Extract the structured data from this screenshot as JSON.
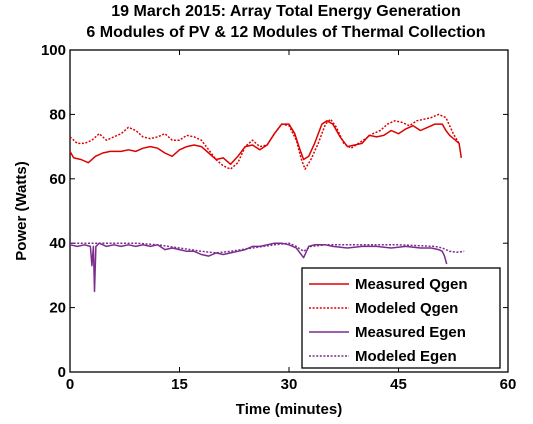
{
  "chart_data": {
    "type": "line",
    "title": [
      "19 March 2015: Array Total Energy Generation",
      "6 Modules of PV & 12 Modules of Thermal Collection"
    ],
    "xlabel": "Time (minutes)",
    "ylabel": "Power (Watts)",
    "xlim": [
      0,
      60
    ],
    "ylim": [
      0,
      100
    ],
    "xticks": [
      0,
      15,
      30,
      45,
      60
    ],
    "yticks": [
      0,
      20,
      40,
      60,
      80,
      100
    ],
    "grid": false,
    "legend_position": "bottom-right",
    "series": [
      {
        "name": "Measured Qgen",
        "color": "#dd0000",
        "style": "solid",
        "points": [
          [
            0,
            68.5
          ],
          [
            0.5,
            66.5
          ],
          [
            1.5,
            66
          ],
          [
            2.5,
            65
          ],
          [
            3.5,
            67
          ],
          [
            4.5,
            68
          ],
          [
            5.5,
            68.5
          ],
          [
            7,
            68.5
          ],
          [
            8,
            69
          ],
          [
            9,
            68.5
          ],
          [
            10,
            69.5
          ],
          [
            11,
            70
          ],
          [
            12,
            69.5
          ],
          [
            13,
            68
          ],
          [
            14,
            67
          ],
          [
            15,
            69
          ],
          [
            16,
            70
          ],
          [
            17,
            70.5
          ],
          [
            18,
            70
          ],
          [
            19,
            68
          ],
          [
            20,
            66
          ],
          [
            21,
            66.5
          ],
          [
            22,
            64.5
          ],
          [
            23,
            67
          ],
          [
            24,
            70
          ],
          [
            25,
            70.5
          ],
          [
            26,
            69
          ],
          [
            27,
            70.5
          ],
          [
            28,
            74
          ],
          [
            29,
            77
          ],
          [
            30,
            77
          ],
          [
            30.8,
            74
          ],
          [
            31.5,
            69
          ],
          [
            32,
            66
          ],
          [
            32.7,
            67
          ],
          [
            33.5,
            71
          ],
          [
            34.5,
            77
          ],
          [
            35.2,
            78
          ],
          [
            36,
            77
          ],
          [
            37,
            73
          ],
          [
            38,
            70
          ],
          [
            39,
            70.5
          ],
          [
            40,
            71
          ],
          [
            41,
            73.5
          ],
          [
            42,
            73
          ],
          [
            43,
            73.5
          ],
          [
            44,
            75
          ],
          [
            45,
            74
          ],
          [
            46,
            75.5
          ],
          [
            47,
            76.5
          ],
          [
            48,
            75
          ],
          [
            49,
            76
          ],
          [
            50,
            77
          ],
          [
            51,
            77
          ],
          [
            51.5,
            75
          ],
          [
            52,
            73.5
          ],
          [
            52.8,
            72
          ],
          [
            53.3,
            71
          ],
          [
            53.6,
            66.5
          ]
        ]
      },
      {
        "name": "Modeled Qgen",
        "color": "#dd0000",
        "style": "dotted",
        "points": [
          [
            0,
            73
          ],
          [
            1,
            71
          ],
          [
            2,
            71
          ],
          [
            3,
            72
          ],
          [
            4,
            74
          ],
          [
            5,
            72
          ],
          [
            6,
            73
          ],
          [
            7,
            74
          ],
          [
            8,
            76
          ],
          [
            9,
            75
          ],
          [
            10,
            73
          ],
          [
            11,
            72.5
          ],
          [
            12,
            73
          ],
          [
            13,
            74
          ],
          [
            14,
            72
          ],
          [
            15,
            72
          ],
          [
            16,
            73.5
          ],
          [
            17,
            73
          ],
          [
            18,
            72
          ],
          [
            19,
            69
          ],
          [
            20,
            66
          ],
          [
            21,
            64
          ],
          [
            22,
            63
          ],
          [
            23,
            65
          ],
          [
            24,
            70
          ],
          [
            25,
            72
          ],
          [
            26,
            70
          ],
          [
            27,
            70.5
          ],
          [
            28,
            74
          ],
          [
            29,
            77
          ],
          [
            30,
            76.5
          ],
          [
            31,
            72
          ],
          [
            31.7,
            66
          ],
          [
            32.2,
            63
          ],
          [
            33,
            66
          ],
          [
            34,
            71
          ],
          [
            35,
            77
          ],
          [
            35.7,
            78.5
          ],
          [
            36.5,
            76
          ],
          [
            37.5,
            71
          ],
          [
            38.5,
            69.5
          ],
          [
            39.5,
            71
          ],
          [
            40.5,
            72.5
          ],
          [
            41.5,
            74
          ],
          [
            42.5,
            75
          ],
          [
            43.5,
            77
          ],
          [
            44.5,
            78
          ],
          [
            45.5,
            77.5
          ],
          [
            46.5,
            76.5
          ],
          [
            47.5,
            78
          ],
          [
            48.5,
            78.5
          ],
          [
            49.5,
            79
          ],
          [
            50.5,
            80
          ],
          [
            51.5,
            79
          ],
          [
            52.5,
            74
          ],
          [
            53.3,
            71
          ]
        ]
      },
      {
        "name": "Measured Egen",
        "color": "#7b2d8e",
        "style": "solid",
        "points": [
          [
            0,
            39.5
          ],
          [
            1,
            39
          ],
          [
            2,
            39.5
          ],
          [
            2.8,
            39
          ],
          [
            3,
            33
          ],
          [
            3.2,
            39
          ],
          [
            3.35,
            25
          ],
          [
            3.55,
            39
          ],
          [
            4,
            40
          ],
          [
            5,
            39
          ],
          [
            6,
            39.5
          ],
          [
            7,
            39
          ],
          [
            8,
            39.5
          ],
          [
            9,
            39
          ],
          [
            10,
            39.5
          ],
          [
            11,
            39
          ],
          [
            12,
            39.5
          ],
          [
            13,
            38
          ],
          [
            14,
            38.5
          ],
          [
            15,
            38
          ],
          [
            16,
            37.5
          ],
          [
            17,
            37.5
          ],
          [
            18,
            36.5
          ],
          [
            19,
            36
          ],
          [
            20,
            37
          ],
          [
            21,
            36.5
          ],
          [
            22,
            37
          ],
          [
            23,
            37.5
          ],
          [
            24,
            38
          ],
          [
            25,
            39
          ],
          [
            26,
            39
          ],
          [
            27,
            39.5
          ],
          [
            28,
            40
          ],
          [
            29,
            40
          ],
          [
            30,
            39.5
          ],
          [
            31,
            38.5
          ],
          [
            32,
            35.5
          ],
          [
            32.7,
            39
          ],
          [
            33.5,
            39.5
          ],
          [
            35,
            39.5
          ],
          [
            36,
            39
          ],
          [
            38,
            38.5
          ],
          [
            40,
            39
          ],
          [
            42,
            39
          ],
          [
            44,
            38.5
          ],
          [
            46,
            39
          ],
          [
            48,
            38.5
          ],
          [
            49.5,
            38.5
          ],
          [
            50.5,
            38
          ],
          [
            51,
            37.5
          ],
          [
            51.3,
            36
          ],
          [
            51.6,
            33.5
          ]
        ]
      },
      {
        "name": "Modeled Egen",
        "color": "#7b2d8e",
        "style": "dotted",
        "points": [
          [
            0,
            40
          ],
          [
            3,
            40
          ],
          [
            6,
            40
          ],
          [
            9,
            40
          ],
          [
            12,
            39.5
          ],
          [
            15,
            38.5
          ],
          [
            18,
            37.5
          ],
          [
            20,
            37
          ],
          [
            22,
            37.5
          ],
          [
            25,
            38.5
          ],
          [
            28,
            39.5
          ],
          [
            30,
            40
          ],
          [
            31,
            39
          ],
          [
            32,
            37.5
          ],
          [
            33,
            39
          ],
          [
            35,
            39.5
          ],
          [
            40,
            39.5
          ],
          [
            45,
            39.5
          ],
          [
            50,
            39
          ],
          [
            51,
            38.5
          ],
          [
            52,
            37.5
          ],
          [
            53,
            37.2
          ],
          [
            54,
            37.5
          ]
        ]
      }
    ]
  }
}
